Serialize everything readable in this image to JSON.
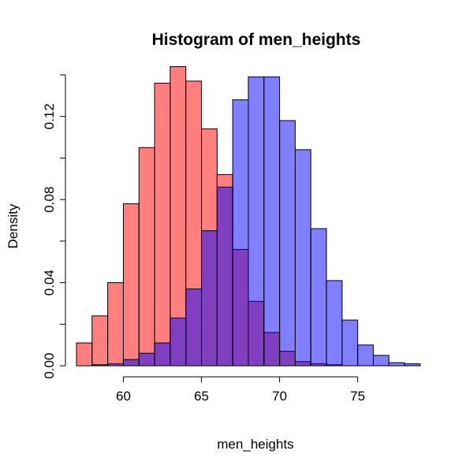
{
  "chart_data": {
    "type": "bar",
    "title": "Histogram of men_heights",
    "xlabel": "men_heights",
    "ylabel": "Density",
    "xlim": [
      57,
      79
    ],
    "ylim": [
      0,
      0.14
    ],
    "bin_width": 1,
    "x_ticks": [
      60,
      65,
      70,
      75
    ],
    "y_ticks": [
      0.0,
      0.04,
      0.08,
      0.12
    ],
    "y_tick_labels": [
      "0.00",
      "0.04",
      "0.08",
      "0.12"
    ],
    "grid": false,
    "series": [
      {
        "color": "#ff0000",
        "opacity": 0.5,
        "bins": [
          {
            "x0": 57,
            "value": 0.011
          },
          {
            "x0": 58,
            "value": 0.024
          },
          {
            "x0": 59,
            "value": 0.04
          },
          {
            "x0": 60,
            "value": 0.078
          },
          {
            "x0": 61,
            "value": 0.105
          },
          {
            "x0": 62,
            "value": 0.136
          },
          {
            "x0": 63,
            "value": 0.144
          },
          {
            "x0": 64,
            "value": 0.137
          },
          {
            "x0": 65,
            "value": 0.114
          },
          {
            "x0": 66,
            "value": 0.092
          },
          {
            "x0": 67,
            "value": 0.056
          },
          {
            "x0": 68,
            "value": 0.031
          },
          {
            "x0": 69,
            "value": 0.016
          },
          {
            "x0": 70,
            "value": 0.007
          },
          {
            "x0": 71,
            "value": 0.002
          },
          {
            "x0": 72,
            "value": 0.001
          },
          {
            "x0": 73,
            "value": 0.0005
          }
        ]
      },
      {
        "color": "#0000ff",
        "opacity": 0.5,
        "bins": [
          {
            "x0": 58,
            "value": 0.0005
          },
          {
            "x0": 59,
            "value": 0.001
          },
          {
            "x0": 60,
            "value": 0.003
          },
          {
            "x0": 61,
            "value": 0.006
          },
          {
            "x0": 62,
            "value": 0.011
          },
          {
            "x0": 63,
            "value": 0.023
          },
          {
            "x0": 64,
            "value": 0.037
          },
          {
            "x0": 65,
            "value": 0.065
          },
          {
            "x0": 66,
            "value": 0.086
          },
          {
            "x0": 67,
            "value": 0.128
          },
          {
            "x0": 68,
            "value": 0.139
          },
          {
            "x0": 69,
            "value": 0.139
          },
          {
            "x0": 70,
            "value": 0.118
          },
          {
            "x0": 71,
            "value": 0.104
          },
          {
            "x0": 72,
            "value": 0.066
          },
          {
            "x0": 73,
            "value": 0.041
          },
          {
            "x0": 74,
            "value": 0.022
          },
          {
            "x0": 75,
            "value": 0.01
          },
          {
            "x0": 76,
            "value": 0.005
          },
          {
            "x0": 77,
            "value": 0.0015
          },
          {
            "x0": 78,
            "value": 0.001
          }
        ]
      }
    ]
  }
}
